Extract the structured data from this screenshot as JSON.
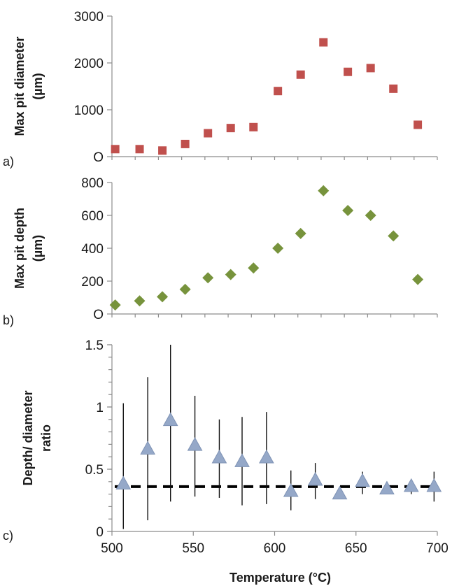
{
  "chart_data": [
    {
      "type": "scatter",
      "panel": "a)",
      "ylabel_lines": [
        "Max pit diameter",
        "(µm)"
      ],
      "ylim": [
        0,
        3000
      ],
      "yticks": [
        0,
        1000,
        2000,
        3000
      ],
      "ytick_labels": [
        "O",
        "1000",
        "2000",
        "3000"
      ],
      "xlim": [
        500,
        700
      ],
      "marker": "square",
      "color": "#c0504d",
      "series": [
        {
          "x": [
            502,
            517,
            531,
            545,
            559,
            573,
            587,
            602,
            616,
            630,
            645,
            659,
            673,
            688
          ],
          "y": [
            160,
            160,
            130,
            270,
            500,
            610,
            630,
            1400,
            1750,
            2440,
            1810,
            1890,
            1450,
            680
          ]
        }
      ]
    },
    {
      "type": "scatter",
      "panel": "b)",
      "ylabel_lines": [
        "Max pit depth",
        "(µm)"
      ],
      "ylim": [
        0,
        800
      ],
      "yticks": [
        0,
        200,
        400,
        600,
        800
      ],
      "ytick_labels": [
        "O",
        "200",
        "400",
        "600",
        "800"
      ],
      "xlim": [
        500,
        700
      ],
      "marker": "diamond",
      "color": "#77933c",
      "series": [
        {
          "x": [
            502,
            517,
            531,
            545,
            559,
            573,
            587,
            602,
            616,
            630,
            645,
            659,
            673,
            688
          ],
          "y": [
            55,
            80,
            105,
            150,
            220,
            240,
            280,
            400,
            490,
            750,
            630,
            600,
            475,
            210
          ]
        }
      ]
    },
    {
      "type": "scatter",
      "panel": "c)",
      "ylabel_lines": [
        "Depth/ diameter",
        "ratio"
      ],
      "ylim": [
        0,
        1.5
      ],
      "yticks": [
        0,
        0.5,
        1,
        1.5
      ],
      "ytick_labels": [
        "0",
        "0.5",
        "1",
        "1.5"
      ],
      "xlim": [
        500,
        700
      ],
      "xticks": [
        500,
        550,
        600,
        650,
        700
      ],
      "xtick_labels": [
        "500",
        "550",
        "600",
        "650",
        "700"
      ],
      "xlabel": "Temperature (°C)",
      "marker": "triangle",
      "color": "#95a8c8",
      "reference_line": 0.36,
      "series": [
        {
          "x": [
            507,
            522,
            536,
            551,
            566,
            580,
            595,
            610,
            625,
            640,
            654,
            669,
            684,
            698
          ],
          "y": [
            0.38,
            0.66,
            0.89,
            0.69,
            0.59,
            0.56,
            0.59,
            0.32,
            0.41,
            0.3,
            0.4,
            0.34,
            0.36,
            0.36
          ],
          "err_low": [
            0.02,
            0.09,
            0.24,
            0.28,
            0.27,
            0.21,
            0.22,
            0.17,
            0.26,
            0.3,
            0.3,
            0.3,
            0.3,
            0.24
          ],
          "err_high": [
            1.03,
            1.24,
            1.5,
            1.09,
            0.9,
            0.92,
            0.96,
            0.49,
            0.55,
            0.3,
            0.48,
            0.34,
            0.42,
            0.48
          ]
        }
      ]
    }
  ]
}
